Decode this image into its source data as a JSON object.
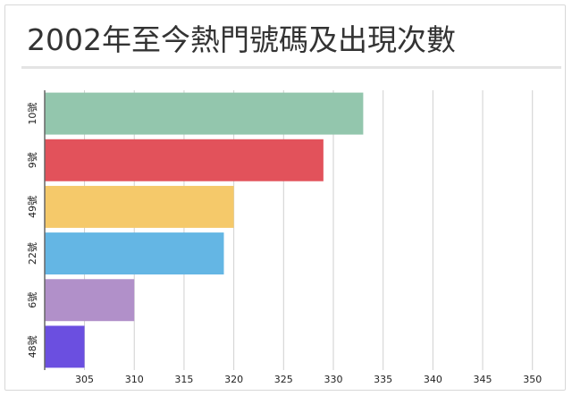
{
  "title": "2002年至今熱門號碼及出現次數",
  "colors": {
    "grid": "#d0d0d0",
    "axis": "#666666"
  },
  "chart_data": {
    "type": "bar",
    "orientation": "horizontal",
    "title": "2002年至今熱門號碼及出現次數",
    "xlabel": "",
    "ylabel": "",
    "categories": [
      "10號",
      "9號",
      "49號",
      "22號",
      "6號",
      "48號"
    ],
    "values": [
      333,
      329,
      320,
      319,
      310,
      305
    ],
    "colors": [
      "#93c6ad",
      "#e2525b",
      "#f5c96a",
      "#64b6e4",
      "#b190c9",
      "#6b4fe0"
    ],
    "xlim": [
      301,
      352
    ],
    "x_ticks": [
      305,
      310,
      315,
      320,
      325,
      330,
      335,
      340,
      345,
      350
    ],
    "grid": true,
    "legend": "none"
  }
}
